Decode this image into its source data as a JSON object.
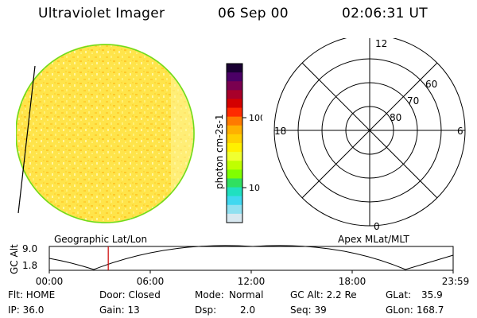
{
  "header": {
    "instrument": "Ultraviolet Imager",
    "date": "06 Sep 00",
    "time": "02:06:31 UT"
  },
  "colorbar": {
    "unit_label": "photon cm-2s-1",
    "ticks": [
      "100",
      "10"
    ],
    "colors_top_to_bottom": [
      "#1a0033",
      "#4b0066",
      "#7a0050",
      "#a8002a",
      "#d40000",
      "#ff2a00",
      "#ff7a00",
      "#ffb000",
      "#ffd000",
      "#fff000",
      "#f0ff30",
      "#c0ff00",
      "#80ff00",
      "#30e060",
      "#20e0c0",
      "#40d8f0",
      "#90e0f0",
      "#d8e8f0"
    ]
  },
  "polar_plot": {
    "mlt_labels": {
      "top": "12",
      "right": "6",
      "bottom": "0",
      "left": "18"
    },
    "lat_labels": [
      "60",
      "70",
      "80"
    ]
  },
  "timeline": {
    "y_axis_title": "GC Alt",
    "y_ticks": [
      "9.0",
      "1.8"
    ],
    "left_label": "Geographic Lat/Lon",
    "right_label": "Apex MLat/MLT",
    "x_ticks": [
      "00:00",
      "06:00",
      "12:00",
      "18:00",
      "23:59"
    ],
    "current_time_fraction": 0.146,
    "marker_color": "#cc0000"
  },
  "info": {
    "row1": {
      "flt": "Flt: HOME",
      "door": "Door: Closed",
      "mode_label": "Mode:",
      "mode_value": "Normal",
      "gc_alt": "GC Alt: 2.2 Re",
      "glat_label": "GLat:",
      "glat_value": "35.9"
    },
    "row2": {
      "ip": "IP: 36.0",
      "gain": "Gain: 13",
      "dsp_label": "Dsp:",
      "dsp_value": "2.0",
      "seq": "Seq: 39",
      "glon_label": "GLon:",
      "glon_value": "168.7"
    }
  }
}
